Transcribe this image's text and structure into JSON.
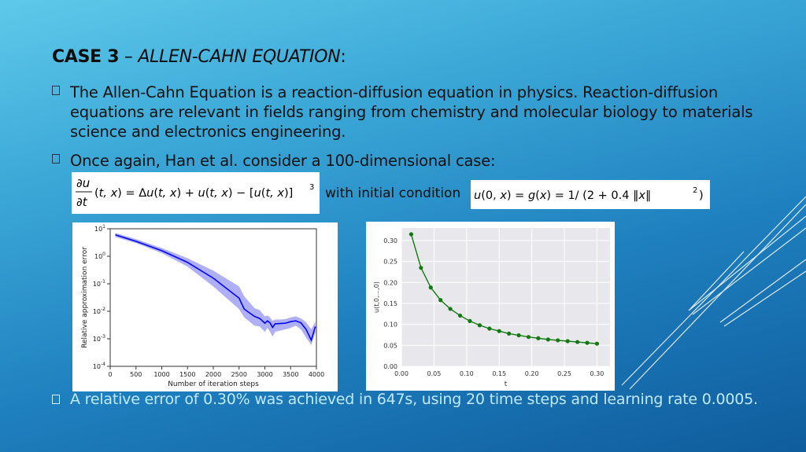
{
  "slide": {
    "title_bold": "CASE 3",
    "title_dash": " – ",
    "title_italic": "ALLEN-CAHN EQUATION",
    "title_colon": ":",
    "bullets": [
      "The Allen-Cahn Equation is a reaction-diffusion equation in physics. Reaction-diffusion equations are relevant in fields ranging from chemistry and molecular biology to materials science and electronics engineering.",
      "Once again, Han et al. consider a 100-dimensional case:",
      "A relative error of 0.30% was achieved in 647s, using 20 time steps and learning rate 0.0005."
    ],
    "bullet_glyph": "",
    "equation_pde": "∂u/∂t(t,x) = Δu(t,x) + u(t,x) − [u(t,x)]³",
    "with_text": "with initial condition",
    "equation_ic": "u(0,x) = g(x) = 1/(2 + 0.4‖x‖²)"
  },
  "colors": {
    "bg_top": "#5fc9ea",
    "bg_bottom": "#0f5c9c",
    "series1": "#0000ff",
    "series1_band": "#9b9bf2",
    "series2": "#137a13",
    "plot_bg": "#e8e8ec"
  },
  "chart_data": [
    {
      "type": "line",
      "title": "",
      "xlabel": "Number of iteration steps",
      "ylabel": "Relative approximation error",
      "y_scale": "log",
      "xlim": [
        0,
        4000
      ],
      "ylim": [
        0.0001,
        10
      ],
      "x_ticks": [
        "0",
        "500",
        "1000",
        "1500",
        "2000",
        "2500",
        "3000",
        "3500",
        "4000"
      ],
      "y_ticks": [
        "10^1",
        "10^0",
        "10^-1",
        "10^-2",
        "10^-3",
        "10^-4"
      ],
      "x": [
        100,
        500,
        1000,
        1500,
        2000,
        2500,
        2600,
        2800,
        2900,
        3000,
        3050,
        3100,
        3150,
        3200,
        3300,
        3400,
        3500,
        3600,
        3700,
        3800,
        3900,
        3980
      ],
      "y": [
        6,
        3.5,
        1.6,
        0.6,
        0.16,
        0.03,
        0.012,
        0.0065,
        0.0055,
        0.0037,
        0.0045,
        0.0038,
        0.0026,
        0.0035,
        0.0036,
        0.0037,
        0.0042,
        0.0045,
        0.0038,
        0.0022,
        0.0009,
        0.0028
      ],
      "band_upper": [
        7,
        4.2,
        2.0,
        0.85,
        0.3,
        0.08,
        0.035,
        0.013,
        0.011,
        0.0065,
        0.007,
        0.006,
        0.0045,
        0.005,
        0.005,
        0.0052,
        0.006,
        0.0065,
        0.0055,
        0.004,
        0.0022,
        0.0042
      ],
      "band_lower": [
        5,
        3.0,
        1.3,
        0.42,
        0.08,
        0.012,
        0.006,
        0.003,
        0.0028,
        0.0018,
        0.0025,
        0.0018,
        0.0012,
        0.0018,
        0.002,
        0.0022,
        0.0025,
        0.003,
        0.0022,
        0.0011,
        0.0006,
        0.0017
      ]
    },
    {
      "type": "line",
      "title": "",
      "xlabel": "t",
      "ylabel": "u(t,0,...,0)",
      "xlim": [
        0,
        0.32
      ],
      "ylim": [
        0,
        0.33
      ],
      "x_ticks": [
        "0.00",
        "0.05",
        "0.10",
        "0.15",
        "0.20",
        "0.25",
        "0.30"
      ],
      "y_ticks": [
        "0.00",
        "0.05",
        "0.10",
        "0.15",
        "0.20",
        "0.25",
        "0.30"
      ],
      "x": [
        0.015,
        0.03,
        0.045,
        0.06,
        0.075,
        0.09,
        0.105,
        0.12,
        0.135,
        0.15,
        0.165,
        0.18,
        0.195,
        0.21,
        0.225,
        0.24,
        0.255,
        0.27,
        0.285,
        0.3
      ],
      "y": [
        0.315,
        0.235,
        0.188,
        0.158,
        0.137,
        0.121,
        0.108,
        0.098,
        0.09,
        0.084,
        0.078,
        0.074,
        0.07,
        0.067,
        0.064,
        0.062,
        0.06,
        0.058,
        0.056,
        0.054
      ]
    }
  ]
}
